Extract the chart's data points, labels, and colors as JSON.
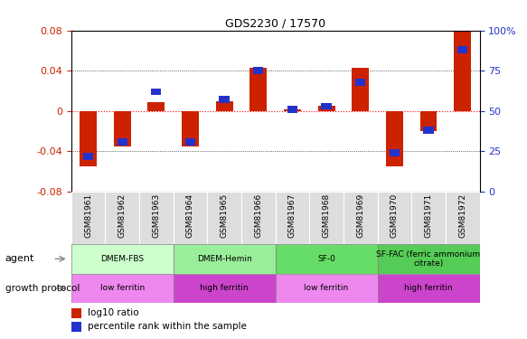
{
  "title": "GDS2230 / 17570",
  "samples": [
    "GSM81961",
    "GSM81962",
    "GSM81963",
    "GSM81964",
    "GSM81965",
    "GSM81966",
    "GSM81967",
    "GSM81968",
    "GSM81969",
    "GSM81970",
    "GSM81971",
    "GSM81972"
  ],
  "log10_ratio": [
    -0.055,
    -0.035,
    0.009,
    -0.035,
    0.01,
    0.043,
    0.002,
    0.005,
    0.043,
    -0.055,
    -0.02,
    0.079
  ],
  "percentile_rank": [
    22,
    31,
    62,
    31,
    57,
    75,
    51,
    53,
    68,
    24,
    38,
    88
  ],
  "ylim_left": [
    -0.08,
    0.08
  ],
  "ylim_right": [
    0,
    100
  ],
  "yticks_left": [
    -0.08,
    -0.04,
    0,
    0.04,
    0.08
  ],
  "yticks_right": [
    0,
    25,
    50,
    75,
    100
  ],
  "bar_color_red": "#cc2200",
  "bar_color_blue": "#2233cc",
  "agent_groups": [
    {
      "label": "DMEM-FBS",
      "start": 0,
      "end": 3,
      "color": "#ccffcc"
    },
    {
      "label": "DMEM-Hemin",
      "start": 3,
      "end": 6,
      "color": "#99ee99"
    },
    {
      "label": "SF-0",
      "start": 6,
      "end": 9,
      "color": "#66dd66"
    },
    {
      "label": "SF-FAC (ferric ammonium\ncitrate)",
      "start": 9,
      "end": 12,
      "color": "#55cc55"
    }
  ],
  "growth_groups": [
    {
      "label": "low ferritin",
      "start": 0,
      "end": 3,
      "color": "#ee88ee"
    },
    {
      "label": "high ferritin",
      "start": 3,
      "end": 6,
      "color": "#cc44cc"
    },
    {
      "label": "low ferritin",
      "start": 6,
      "end": 9,
      "color": "#ee88ee"
    },
    {
      "label": "high ferritin",
      "start": 9,
      "end": 12,
      "color": "#cc44cc"
    }
  ],
  "legend_items": [
    {
      "label": "log10 ratio",
      "color": "#cc2200"
    },
    {
      "label": "percentile rank within the sample",
      "color": "#2233cc"
    }
  ],
  "bar_width": 0.5
}
